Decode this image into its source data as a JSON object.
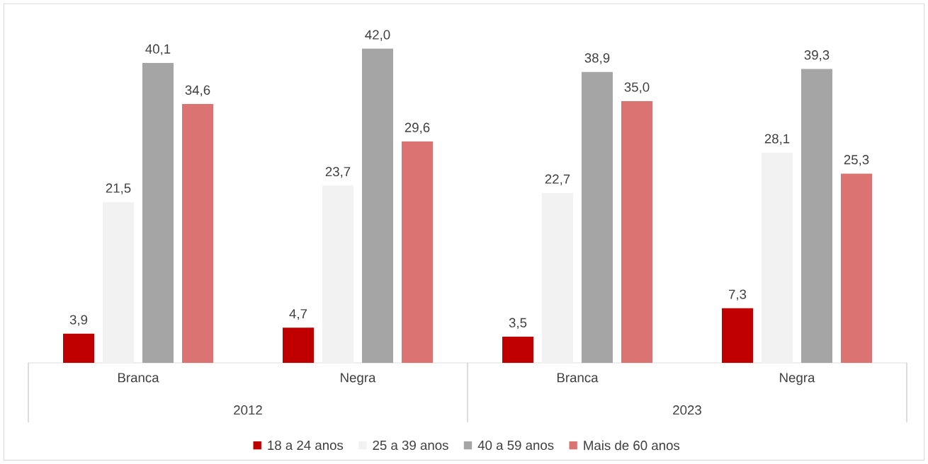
{
  "chart_data": {
    "type": "bar",
    "categories": [
      "Branca",
      "Negra",
      "Branca",
      "Negra"
    ],
    "series": [
      {
        "name": "18 a 24 anos",
        "color": "#c00000",
        "values": [
          3.9,
          4.7,
          3.5,
          7.3
        ],
        "value_labels": [
          "3,9",
          "4,7",
          "3,5",
          "7,3"
        ]
      },
      {
        "name": "25 a 39 anos",
        "color": "#f2f2f2",
        "values": [
          21.5,
          23.7,
          22.7,
          28.1
        ],
        "value_labels": [
          "21,5",
          "23,7",
          "22,7",
          "28,1"
        ]
      },
      {
        "name": "40 a 59 anos",
        "color": "#a5a5a5",
        "values": [
          40.1,
          42.0,
          38.9,
          39.3
        ],
        "value_labels": [
          "40,1",
          "42,0",
          "38,9",
          "39,3"
        ]
      },
      {
        "name": "Mais de 60 anos",
        "color": "#dc7373",
        "values": [
          34.6,
          29.6,
          35.0,
          25.3
        ],
        "value_labels": [
          "34,6",
          "29,6",
          "35,0",
          "25,3"
        ]
      }
    ],
    "annotations": [
      "2012",
      "2023"
    ],
    "legend": "bottom"
  }
}
